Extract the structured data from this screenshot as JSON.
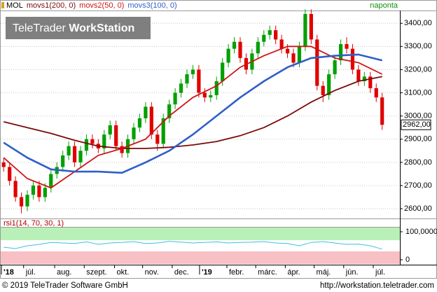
{
  "header": {
    "logo_part1": "TeleTrader",
    "logo_part2": "WorkStation"
  },
  "footer": {
    "copyright": "© 2019 TeleTrader Software GmbH",
    "url": "http://workstation.teletrader.com"
  },
  "chart_data": [
    {
      "type": "candlestick",
      "symbol": "MOL",
      "period": "naponta",
      "last_label": "2962,00",
      "up_color": "#00a000",
      "down_color": "#e00000",
      "grid": true,
      "xlim": [
        0,
        270
      ],
      "xticks": [
        {
          "value": 0.5,
          "label": "'18"
        },
        {
          "value": 15.5,
          "label": "júl."
        },
        {
          "value": 36.5,
          "label": "aug."
        },
        {
          "value": 56.5,
          "label": "szept."
        },
        {
          "value": 77,
          "label": "okt."
        },
        {
          "value": 96,
          "label": "nov."
        },
        {
          "value": 116,
          "label": "dec."
        },
        {
          "value": 134.5,
          "label": "'19"
        },
        {
          "value": 153,
          "label": "febr."
        },
        {
          "value": 172.5,
          "label": "márc."
        },
        {
          "value": 192.5,
          "label": "ápr."
        },
        {
          "value": 212,
          "label": "máj."
        },
        {
          "value": 232,
          "label": "jún."
        },
        {
          "value": 252,
          "label": "júl."
        }
      ],
      "ylim": [
        2570,
        3455
      ],
      "yticks": [
        {
          "value": 2600,
          "label": "2600,00"
        },
        {
          "value": 2700,
          "label": "2700,00"
        },
        {
          "value": 2800,
          "label": "2800,00"
        },
        {
          "value": 2900,
          "label": "2900,00"
        },
        {
          "value": 3000,
          "label": "3000,00"
        },
        {
          "value": 3100,
          "label": "3100,00"
        },
        {
          "value": 3200,
          "label": "3200,00"
        },
        {
          "value": 3300,
          "label": "3300,00"
        },
        {
          "value": 3400,
          "label": "3400,00"
        }
      ],
      "x": [
        2,
        6,
        10,
        14,
        18,
        22,
        26,
        30,
        34,
        38,
        42,
        46,
        50,
        54,
        58,
        62,
        66,
        70,
        74,
        78,
        82,
        86,
        90,
        94,
        98,
        102,
        106,
        110,
        114,
        118,
        122,
        126,
        130,
        134,
        138,
        142,
        146,
        150,
        154,
        158,
        162,
        166,
        170,
        174,
        178,
        182,
        186,
        190,
        194,
        198,
        202,
        206,
        210,
        214,
        218,
        222,
        226,
        230,
        234,
        238,
        242,
        246,
        250,
        254,
        258
      ],
      "open": [
        2800,
        2780,
        2720,
        2650,
        2610,
        2660,
        2700,
        2650,
        2690,
        2750,
        2780,
        2830,
        2870,
        2800,
        2850,
        2900,
        2880,
        2860,
        2920,
        2960,
        2870,
        2840,
        2900,
        2950,
        2990,
        3040,
        2920,
        2880,
        2990,
        3050,
        3100,
        3140,
        3180,
        3200,
        3100,
        3080,
        3090,
        3150,
        3230,
        3290,
        3320,
        3250,
        3200,
        3270,
        3320,
        3350,
        3370,
        3330,
        3290,
        3270,
        3230,
        3300,
        3440,
        3330,
        3130,
        3090,
        3180,
        3240,
        3310,
        3290,
        3200,
        3150,
        3170,
        3120,
        3080
      ],
      "high": [
        2820,
        2800,
        2740,
        2670,
        2680,
        2720,
        2720,
        2710,
        2770,
        2800,
        2850,
        2890,
        2890,
        2870,
        2920,
        2920,
        2900,
        2940,
        2980,
        2980,
        2890,
        2920,
        2970,
        3010,
        3060,
        3060,
        2940,
        3010,
        3070,
        3120,
        3160,
        3200,
        3220,
        3220,
        3120,
        3110,
        3170,
        3250,
        3310,
        3340,
        3340,
        3270,
        3290,
        3340,
        3370,
        3390,
        3390,
        3350,
        3310,
        3290,
        3320,
        3460,
        3460,
        3350,
        3150,
        3200,
        3260,
        3330,
        3340,
        3310,
        3220,
        3190,
        3190,
        3140,
        3100
      ],
      "low": [
        2760,
        2700,
        2630,
        2580,
        2590,
        2640,
        2630,
        2630,
        2670,
        2730,
        2760,
        2810,
        2780,
        2780,
        2830,
        2860,
        2840,
        2840,
        2900,
        2850,
        2820,
        2820,
        2880,
        2930,
        2970,
        2900,
        2850,
        2860,
        2970,
        3030,
        3080,
        3120,
        3160,
        3080,
        3060,
        3060,
        3070,
        3130,
        3210,
        3270,
        3230,
        3180,
        3180,
        3250,
        3300,
        3330,
        3310,
        3270,
        3250,
        3210,
        3210,
        3280,
        3310,
        3110,
        3060,
        3070,
        3160,
        3220,
        3270,
        3180,
        3130,
        3130,
        3100,
        3060,
        2940
      ],
      "close": [
        2780,
        2720,
        2650,
        2610,
        2660,
        2700,
        2650,
        2690,
        2750,
        2780,
        2830,
        2870,
        2800,
        2850,
        2900,
        2880,
        2860,
        2920,
        2960,
        2870,
        2840,
        2900,
        2950,
        2990,
        3040,
        2920,
        2880,
        2990,
        3050,
        3100,
        3140,
        3180,
        3200,
        3100,
        3080,
        3090,
        3150,
        3230,
        3290,
        3320,
        3250,
        3200,
        3270,
        3320,
        3350,
        3370,
        3330,
        3290,
        3270,
        3230,
        3300,
        3440,
        3330,
        3130,
        3090,
        3180,
        3240,
        3310,
        3290,
        3200,
        3150,
        3170,
        3120,
        3080,
        2962
      ],
      "series": [
        {
          "name": "movs1(200, 0)",
          "color": "#7a0a0a",
          "x": [
            2,
            18,
            34,
            50,
            66,
            82,
            98,
            114,
            130,
            146,
            162,
            178,
            194,
            210,
            226,
            242,
            258
          ],
          "values": [
            2975,
            2950,
            2925,
            2895,
            2870,
            2860,
            2860,
            2865,
            2875,
            2890,
            2915,
            2950,
            3000,
            3060,
            3110,
            3150,
            3170
          ]
        },
        {
          "name": "movs2(50, 0)",
          "color": "#d01414",
          "x": [
            2,
            18,
            34,
            50,
            66,
            82,
            98,
            114,
            130,
            146,
            162,
            178,
            194,
            210,
            226,
            242,
            258
          ],
          "values": [
            2820,
            2730,
            2690,
            2760,
            2830,
            2860,
            2900,
            3000,
            3080,
            3130,
            3210,
            3260,
            3300,
            3300,
            3250,
            3230,
            3180
          ]
        },
        {
          "name": "movs3(100, 0)",
          "color": "#2f5fc8",
          "x": [
            2,
            18,
            34,
            50,
            66,
            82,
            98,
            114,
            130,
            146,
            162,
            178,
            194,
            210,
            226,
            242,
            258
          ],
          "values": [
            2885,
            2820,
            2770,
            2760,
            2760,
            2755,
            2800,
            2850,
            2920,
            3000,
            3080,
            3150,
            3210,
            3250,
            3260,
            3265,
            3240
          ]
        }
      ]
    },
    {
      "type": "line",
      "title": "rsi1(14, 70, 30, 1)",
      "color": "#3cc0e4",
      "ylim": [
        -15,
        115
      ],
      "yticks": [
        {
          "value": 100,
          "label": "100,0000"
        },
        0
      ],
      "bands": [
        {
          "from": 70,
          "to": 115,
          "color": "#b8f0b8"
        },
        {
          "from": -15,
          "to": 30,
          "color": "#f8c0c4"
        }
      ],
      "x": [
        2,
        10,
        18,
        26,
        34,
        42,
        50,
        58,
        66,
        74,
        82,
        90,
        98,
        106,
        114,
        122,
        130,
        138,
        146,
        154,
        162,
        170,
        178,
        186,
        194,
        202,
        210,
        218,
        226,
        234,
        242,
        250,
        258
      ],
      "values": [
        45,
        40,
        50,
        55,
        62,
        60,
        58,
        64,
        55,
        60,
        62,
        65,
        58,
        60,
        66,
        63,
        60,
        62,
        64,
        60,
        62,
        63,
        65,
        60,
        58,
        50,
        62,
        65,
        60,
        55,
        56,
        50,
        38
      ]
    }
  ]
}
